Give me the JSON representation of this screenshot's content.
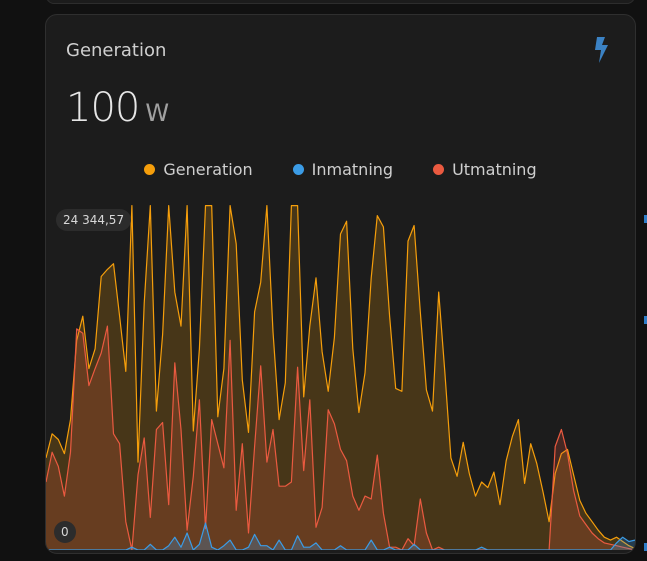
{
  "card": {
    "title": "Generation",
    "state_value": "100",
    "state_unit": "W",
    "icon": "flash-icon",
    "accent": "#3b82c4"
  },
  "legend": [
    {
      "label": "Generation",
      "color": "#f59e0b"
    },
    {
      "label": "Inmatning",
      "color": "#3b9ce6"
    },
    {
      "label": "Utmatning",
      "color": "#ea5a40"
    }
  ],
  "badges": {
    "max": "24 344,57",
    "min": "0"
  },
  "chart_data": {
    "type": "area",
    "ylim": [
      0,
      24344.57
    ],
    "series": [
      {
        "name": "Generation",
        "color": "#f59e0b",
        "values": [
          6500,
          8200,
          7800,
          6800,
          9200,
          14800,
          16500,
          12800,
          14200,
          19300,
          19800,
          20200,
          16500,
          12600,
          24300,
          6200,
          17400,
          24300,
          9800,
          15200,
          24300,
          18200,
          15800,
          24300,
          8400,
          14200,
          24300,
          24300,
          9400,
          12800,
          24300,
          21600,
          12000,
          8300,
          16800,
          18900,
          24300,
          15400,
          9200,
          11800,
          24300,
          24300,
          10800,
          15800,
          19200,
          14000,
          11200,
          15000,
          22300,
          23200,
          14200,
          9700,
          12500,
          19200,
          23600,
          22800,
          16500,
          11400,
          11200,
          21800,
          22900,
          16800,
          11300,
          9800,
          18200,
          12600,
          6500,
          5200,
          7600,
          5400,
          3800,
          4800,
          4400,
          5500,
          3200,
          6300,
          8000,
          9200,
          4700,
          7500,
          6100,
          4100,
          2000,
          5400,
          6800,
          7100,
          5300,
          3500,
          2600,
          2000,
          1400,
          900,
          700,
          900,
          600,
          300,
          100
        ]
      },
      {
        "name": "Inmatning",
        "color": "#3b9ce6",
        "values": [
          0,
          0,
          0,
          0,
          0,
          0,
          0,
          0,
          0,
          0,
          0,
          0,
          0,
          0,
          200,
          0,
          0,
          400,
          0,
          0,
          300,
          900,
          200,
          1200,
          0,
          400,
          1900,
          200,
          0,
          300,
          700,
          0,
          0,
          200,
          1100,
          300,
          300,
          0,
          700,
          0,
          0,
          1000,
          200,
          200,
          500,
          0,
          0,
          0,
          300,
          0,
          0,
          0,
          0,
          700,
          0,
          0,
          200,
          0,
          0,
          0,
          400,
          0,
          0,
          0,
          0,
          0,
          0,
          0,
          0,
          0,
          0,
          200,
          0,
          0,
          0,
          0,
          0,
          0,
          0,
          0,
          0,
          0,
          0,
          0,
          0,
          0,
          0,
          0,
          0,
          0,
          0,
          0,
          0,
          500,
          900,
          600,
          700
        ]
      },
      {
        "name": "Utmatning",
        "color": "#ea5a40",
        "values": [
          4800,
          6900,
          5900,
          3800,
          6900,
          15600,
          15300,
          11600,
          12800,
          13900,
          15800,
          8200,
          7500,
          2000,
          0,
          5300,
          7900,
          2300,
          8500,
          9000,
          3200,
          13200,
          8500,
          1400,
          5200,
          10600,
          1500,
          9200,
          7500,
          5800,
          14800,
          2800,
          7500,
          1200,
          7300,
          13000,
          6200,
          8500,
          4500,
          4500,
          4800,
          12900,
          5600,
          10600,
          1600,
          3000,
          9900,
          8900,
          7100,
          6300,
          3800,
          2800,
          3800,
          3600,
          6700,
          2600,
          200,
          200,
          0,
          800,
          300,
          3600,
          1200,
          0,
          200,
          0,
          0,
          0,
          0,
          0,
          0,
          0,
          0,
          0,
          0,
          0,
          0,
          0,
          0,
          0,
          0,
          0,
          0,
          7300,
          8500,
          6800,
          4200,
          2400,
          1800,
          1200,
          800,
          500,
          400,
          300,
          200,
          100,
          0
        ]
      }
    ]
  }
}
